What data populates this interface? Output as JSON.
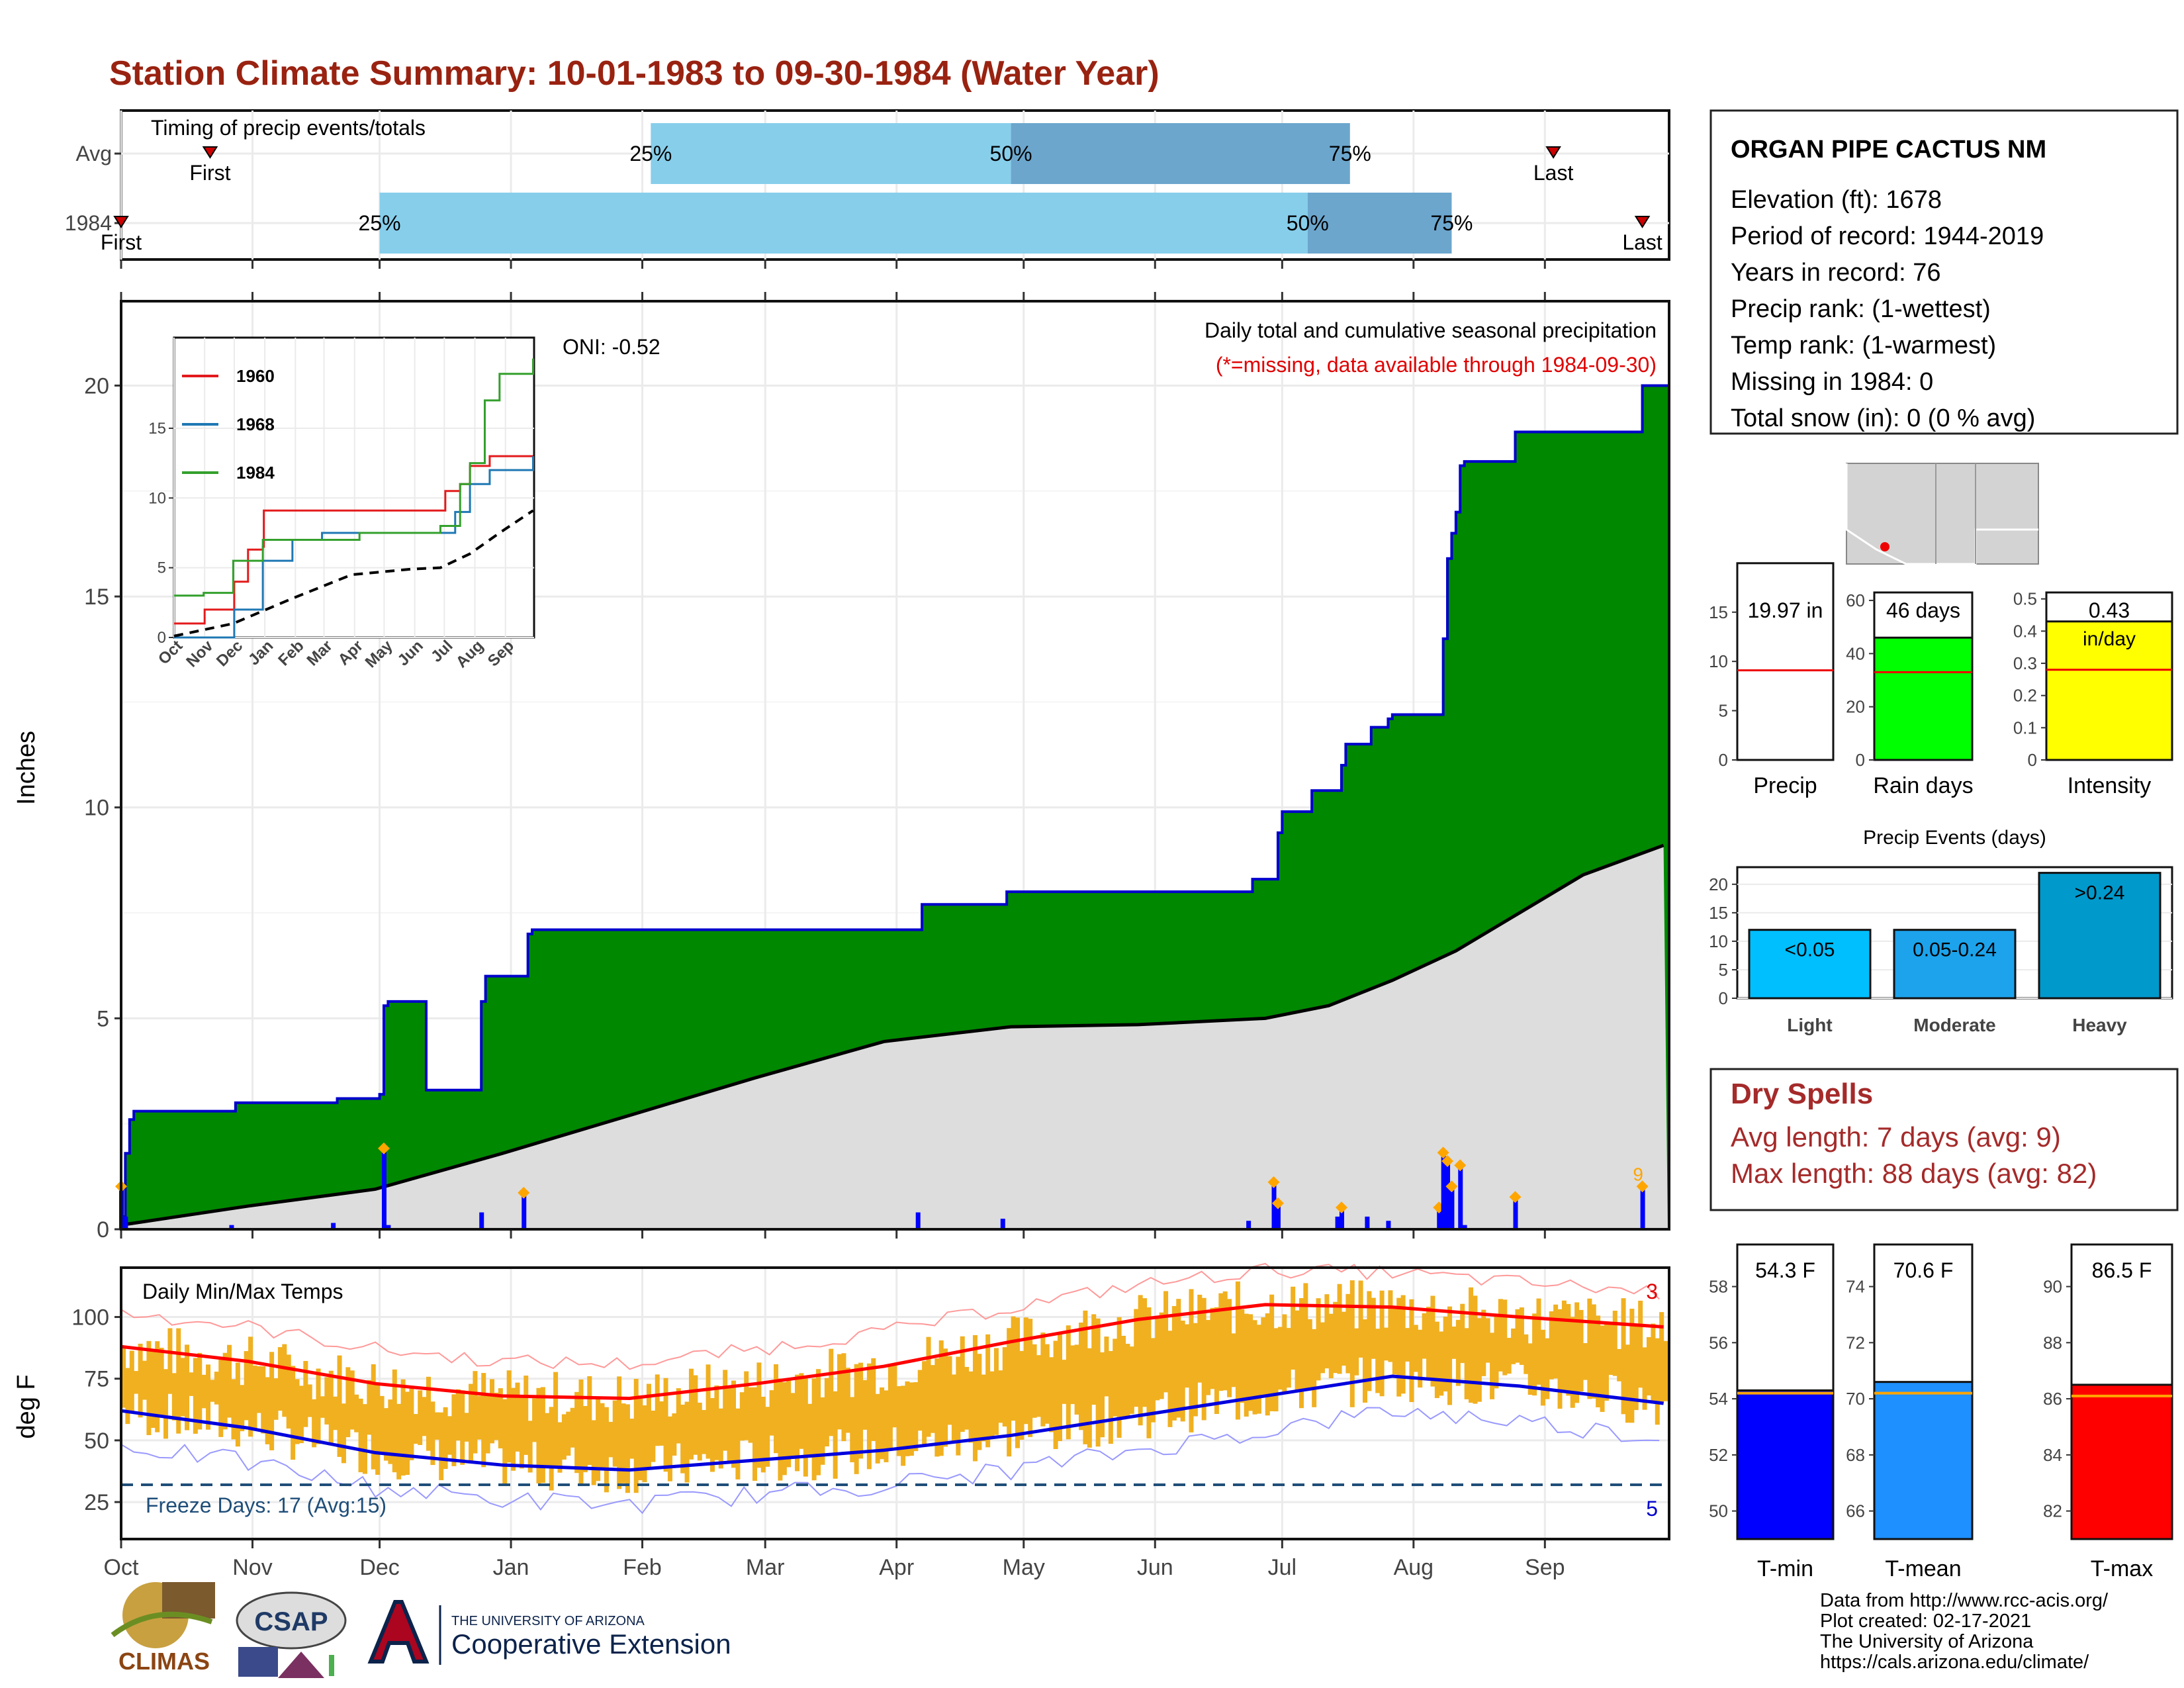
{
  "title": "Station Climate Summary: 10-01-1983 to 09-30-1984 (Water Year)",
  "months": [
    "Oct",
    "Nov",
    "Dec",
    "Jan",
    "Feb",
    "Mar",
    "Apr",
    "May",
    "Jun",
    "Jul",
    "Aug",
    "Sep"
  ],
  "timing": {
    "label": "Timing of precip events/totals",
    "rows": [
      {
        "name": "Avg",
        "first_label": "First",
        "last_label": "Last",
        "first_day": 21,
        "q25_day": 125,
        "q50_day": 210,
        "q75_day": 290,
        "last_day": 338
      },
      {
        "name": "1984",
        "first_label": "First",
        "last_label": "Last",
        "first_day": 0,
        "q25_day": 61,
        "q50_day": 280,
        "q75_day": 314,
        "last_day": 359
      }
    ],
    "q_labels": [
      "25%",
      "50%",
      "75%"
    ]
  },
  "precip": {
    "ylabel": "Inches",
    "yticks": [
      0,
      5,
      10,
      15,
      20
    ],
    "ylim": [
      0,
      22
    ],
    "oni_label": "ONI: -0.52",
    "header": "Daily total and cumulative seasonal precipitation",
    "missing_note": "(*=missing, data available through 1984-09-30)",
    "cumulative_steps": [
      [
        0,
        0.3
      ],
      [
        1,
        1.8
      ],
      [
        2,
        2.6
      ],
      [
        3,
        2.8
      ],
      [
        26,
        2.8
      ],
      [
        27,
        3.0
      ],
      [
        50,
        3.0
      ],
      [
        51,
        3.1
      ],
      [
        62,
        3.2
      ],
      [
        72,
        3.3
      ],
      [
        61,
        3.2
      ],
      [
        62,
        5.3
      ],
      [
        63,
        5.4
      ],
      [
        85,
        5.4
      ],
      [
        86,
        6.0
      ],
      [
        95,
        6.0
      ],
      [
        96,
        7.0
      ],
      [
        97,
        7.1
      ],
      [
        188,
        7.1
      ],
      [
        189,
        7.7
      ],
      [
        208,
        7.7
      ],
      [
        209,
        8.0
      ],
      [
        266,
        8.0
      ],
      [
        267,
        8.3
      ],
      [
        272,
        8.3
      ],
      [
        273,
        9.4
      ],
      [
        274,
        9.9
      ],
      [
        280,
        9.9
      ],
      [
        281,
        10.4
      ],
      [
        282,
        10.4
      ],
      [
        287,
        10.4
      ],
      [
        288,
        11.0
      ],
      [
        289,
        11.5
      ],
      [
        290,
        11.5
      ],
      [
        294,
        11.5
      ],
      [
        295,
        11.9
      ],
      [
        299,
        12.1
      ],
      [
        300,
        12.2
      ],
      [
        311,
        12.2
      ],
      [
        312,
        14.0
      ],
      [
        313,
        15.9
      ],
      [
        314,
        16.5
      ],
      [
        315,
        17.0
      ],
      [
        316,
        18.1
      ],
      [
        317,
        18.2
      ],
      [
        328,
        18.2
      ],
      [
        329,
        18.9
      ],
      [
        358,
        18.9
      ],
      [
        359,
        20.0
      ]
    ],
    "avg_cumulative": [
      [
        0,
        0.1
      ],
      [
        30,
        0.55
      ],
      [
        60,
        0.95
      ],
      [
        90,
        1.8
      ],
      [
        120,
        2.7
      ],
      [
        150,
        3.6
      ],
      [
        180,
        4.45
      ],
      [
        210,
        4.8
      ],
      [
        240,
        4.85
      ],
      [
        270,
        5.0
      ],
      [
        285,
        5.3
      ],
      [
        300,
        5.9
      ],
      [
        315,
        6.6
      ],
      [
        330,
        7.5
      ],
      [
        345,
        8.4
      ],
      [
        364,
        9.1
      ]
    ],
    "daily_bars": [
      [
        0,
        1.0
      ],
      [
        1,
        0.3
      ],
      [
        26,
        0.1
      ],
      [
        50,
        0.15
      ],
      [
        62,
        1.9
      ],
      [
        63,
        0.1
      ],
      [
        85,
        0.4
      ],
      [
        95,
        0.85
      ],
      [
        188,
        0.4
      ],
      [
        208,
        0.25
      ],
      [
        266,
        0.2
      ],
      [
        272,
        1.1
      ],
      [
        273,
        0.6
      ],
      [
        287,
        0.3
      ],
      [
        288,
        0.5
      ],
      [
        294,
        0.3
      ],
      [
        299,
        0.2
      ],
      [
        311,
        0.5
      ],
      [
        312,
        1.8
      ],
      [
        313,
        1.6
      ],
      [
        314,
        1.0
      ],
      [
        316,
        1.5
      ],
      [
        317,
        0.1
      ],
      [
        329,
        0.75
      ],
      [
        359,
        1.0
      ]
    ],
    "total_label_char": "9",
    "colors": {
      "cum": "#008800",
      "cum_line": "#0000CC",
      "avg_fill": "#DDDDDD",
      "bars": "#0000FF",
      "flag": "#FFA500"
    }
  },
  "inset": {
    "series": [
      {
        "name": "1960",
        "color": "#E31A1C"
      },
      {
        "name": "1968",
        "color": "#1F78B4"
      },
      {
        "name": "1984",
        "color": "#33A02C"
      }
    ],
    "yticks": [
      0,
      5,
      10,
      15
    ],
    "xticks": [
      "Oct",
      "Nov",
      "Dec",
      "Jan",
      "Feb",
      "Mar",
      "Apr",
      "May",
      "Jun",
      "Jul",
      "Aug",
      "Sep"
    ],
    "lines": {
      "1960": [
        [
          0,
          1.0
        ],
        [
          30,
          1.0
        ],
        [
          31,
          2.0
        ],
        [
          60,
          2.0
        ],
        [
          61,
          4.0
        ],
        [
          75,
          6.3
        ],
        [
          90,
          6.5
        ],
        [
          91,
          9.1
        ],
        [
          265,
          9.1
        ],
        [
          275,
          10.5
        ],
        [
          290,
          11.0
        ],
        [
          300,
          12.3
        ],
        [
          320,
          13.0
        ],
        [
          364,
          13.0
        ]
      ],
      "1968": [
        [
          0,
          0
        ],
        [
          60,
          0
        ],
        [
          61,
          2.0
        ],
        [
          90,
          5.5
        ],
        [
          120,
          7.0
        ],
        [
          150,
          7.5
        ],
        [
          270,
          7.5
        ],
        [
          285,
          9.0
        ],
        [
          300,
          11.0
        ],
        [
          320,
          12.0
        ],
        [
          364,
          13.0
        ]
      ],
      "1984": [
        [
          0,
          3.0
        ],
        [
          30,
          3.2
        ],
        [
          60,
          5.5
        ],
        [
          90,
          7.0
        ],
        [
          188,
          7.5
        ],
        [
          270,
          8.0
        ],
        [
          290,
          11.0
        ],
        [
          300,
          12.5
        ],
        [
          315,
          17.0
        ],
        [
          330,
          18.9
        ],
        [
          364,
          20.0
        ]
      ],
      "avg": [
        [
          0,
          0.1
        ],
        [
          60,
          1.0
        ],
        [
          120,
          2.8
        ],
        [
          180,
          4.5
        ],
        [
          240,
          4.9
        ],
        [
          270,
          5.0
        ],
        [
          300,
          6.0
        ],
        [
          330,
          7.5
        ],
        [
          364,
          9.1
        ]
      ]
    }
  },
  "temps": {
    "title": "Daily Min/Max Temps",
    "ylabel": "deg F",
    "yticks": [
      25,
      50,
      75,
      100
    ],
    "ylim": [
      10,
      120
    ],
    "freeze_label": "Freeze Days: 17 (Avg:15)",
    "freeze_threshold": 32,
    "max_record_count": "3",
    "min_record_count": "5",
    "avg_max": [
      [
        0,
        88
      ],
      [
        30,
        82
      ],
      [
        60,
        73
      ],
      [
        90,
        68
      ],
      [
        120,
        67
      ],
      [
        150,
        73
      ],
      [
        180,
        80
      ],
      [
        210,
        90
      ],
      [
        240,
        99
      ],
      [
        270,
        105
      ],
      [
        300,
        104
      ],
      [
        330,
        100
      ],
      [
        364,
        96
      ]
    ],
    "avg_min": [
      [
        0,
        62
      ],
      [
        30,
        55
      ],
      [
        60,
        45
      ],
      [
        90,
        40
      ],
      [
        120,
        38
      ],
      [
        150,
        42
      ],
      [
        180,
        46
      ],
      [
        210,
        52
      ],
      [
        240,
        60
      ],
      [
        270,
        68
      ],
      [
        300,
        76
      ],
      [
        330,
        72
      ],
      [
        364,
        65
      ]
    ],
    "colors": {
      "bars": "#F0B020",
      "avg_max": "#FF0000",
      "avg_min": "#0000DD",
      "rec_max": "#FF9999",
      "rec_min": "#9999FF",
      "freeze": "#1F4E79"
    }
  },
  "station": {
    "name": "ORGAN PIPE CACTUS NM",
    "lines": [
      "Elevation (ft): 1678",
      "Period of record: 1944-2019",
      "Years in record: 76",
      "Precip rank:  (1-wettest)",
      "Temp rank:  (1-warmest)",
      "Missing in 1984: 0",
      "Total snow (in): 0 (0 % avg)"
    ]
  },
  "mini_bars": [
    {
      "label": "Precip",
      "value_label": "19.97 in",
      "value": 19.97,
      "avg": 9.1,
      "yticks": [
        0,
        5,
        10,
        15
      ],
      "ylim": [
        0,
        17
      ],
      "color": "#FFFFFF"
    },
    {
      "label": "Rain days",
      "value_label": "46 days",
      "value": 46,
      "avg": 33,
      "yticks": [
        0,
        20,
        40,
        60
      ],
      "ylim": [
        0,
        63
      ],
      "color": "#00FF00"
    },
    {
      "label": "Intensity",
      "value_label": "0.43",
      "value_sub": "in/day",
      "value": 0.43,
      "avg": 0.28,
      "yticks": [
        0.0,
        0.1,
        0.2,
        0.3,
        0.4,
        0.5
      ],
      "ylim": [
        0,
        0.52
      ],
      "color": "#FFFF00"
    }
  ],
  "events": {
    "title": "Precip Events (days)",
    "yticks": [
      0,
      5,
      10,
      15,
      20
    ],
    "ylim": [
      0,
      23
    ],
    "bars": [
      {
        "label": "Light",
        "tag": "<0.05",
        "value": 12,
        "color": "#00BFFF"
      },
      {
        "label": "Moderate",
        "tag": "0.05-0.24",
        "value": 12,
        "color": "#1CA3EC"
      },
      {
        "label": "Heavy",
        "tag": ">0.24",
        "value": 22,
        "color": "#0099CC"
      }
    ]
  },
  "dry": {
    "title": "Dry Spells",
    "avg_line": "Avg length: 7 days (avg: 9)",
    "max_line": "Max length: 88 days (avg: 82)"
  },
  "temp_bars": [
    {
      "label": "T-min",
      "value_label": "54.3 F",
      "value": 54.3,
      "avg": 54.2,
      "yticks": [
        50,
        52,
        54,
        56,
        58
      ],
      "ylim": [
        49,
        59.5
      ],
      "color": "#0000FF"
    },
    {
      "label": "T-mean",
      "value_label": "70.6 F",
      "value": 70.6,
      "avg": 70.2,
      "yticks": [
        66,
        68,
        70,
        72,
        74
      ],
      "ylim": [
        65,
        75.5
      ],
      "color": "#1E90FF"
    },
    {
      "label": "T-max",
      "value_label": "86.5 F",
      "value": 86.5,
      "avg": 86.1,
      "yticks": [
        82,
        84,
        86,
        88,
        90
      ],
      "ylim": [
        81,
        91.5
      ],
      "color": "#FF0000"
    }
  ],
  "credits": [
    "Data from http://www.rcc-acis.org/",
    "Plot created: 02-17-2021",
    "The University of Arizona",
    "https://cals.arizona.edu/climate/"
  ],
  "logos": {
    "climas": "CLIMAS",
    "csap": "CSAP",
    "ua_top": "THE UNIVERSITY OF ARIZONA",
    "ua_main": "Cooperative Extension"
  }
}
